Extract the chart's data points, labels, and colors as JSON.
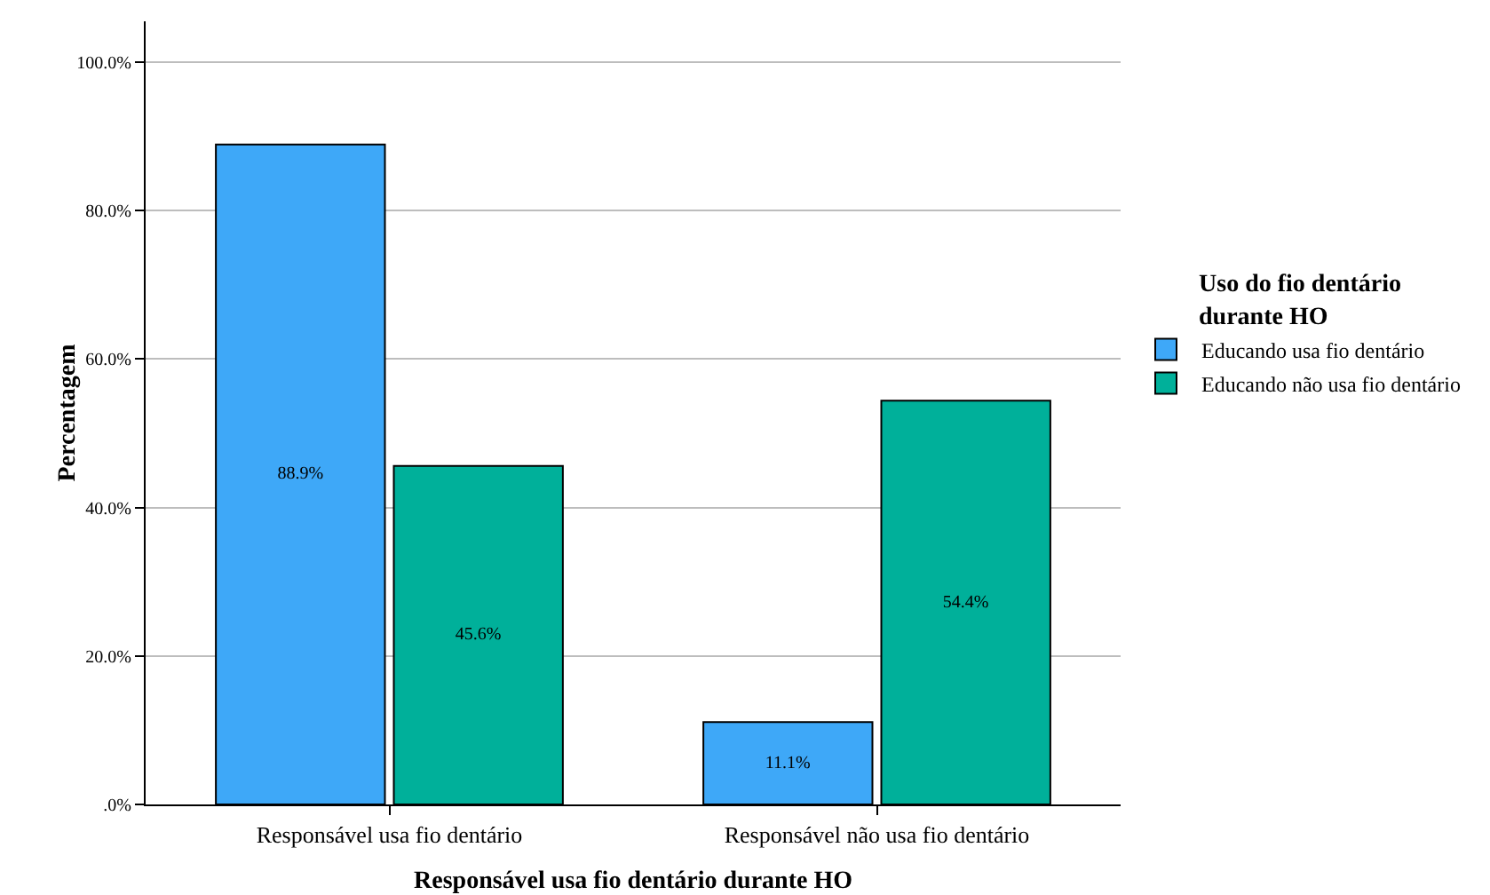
{
  "chart_data": {
    "type": "bar",
    "xlabel": "Responsável usa fio dentário durante HO",
    "ylabel": "Percentagem",
    "legend_title": "Uso do fio dentário durante HO",
    "categories": [
      "Responsável usa fio dentário",
      "Responsável não usa fio dentário"
    ],
    "series": [
      {
        "name": "Educando usa fio dentário",
        "color": "#3ea8f8",
        "values": [
          88.9,
          11.1
        ],
        "value_labels": [
          "88.9%",
          "11.1%"
        ]
      },
      {
        "name": "Educando não usa fio dentário",
        "color": "#00b09a",
        "values": [
          45.6,
          54.4
        ],
        "value_labels": [
          "45.6%",
          "54.4%"
        ]
      }
    ],
    "ylim": [
      0,
      105.5
    ],
    "yticks": [
      {
        "value": 0,
        "label": ".0%"
      },
      {
        "value": 20,
        "label": "20.0%"
      },
      {
        "value": 40,
        "label": "40.0%"
      },
      {
        "value": 60,
        "label": "60.0%"
      },
      {
        "value": 80,
        "label": "80.0%"
      },
      {
        "value": 100,
        "label": "100.0%"
      }
    ],
    "grid": "y",
    "legend": "right"
  }
}
